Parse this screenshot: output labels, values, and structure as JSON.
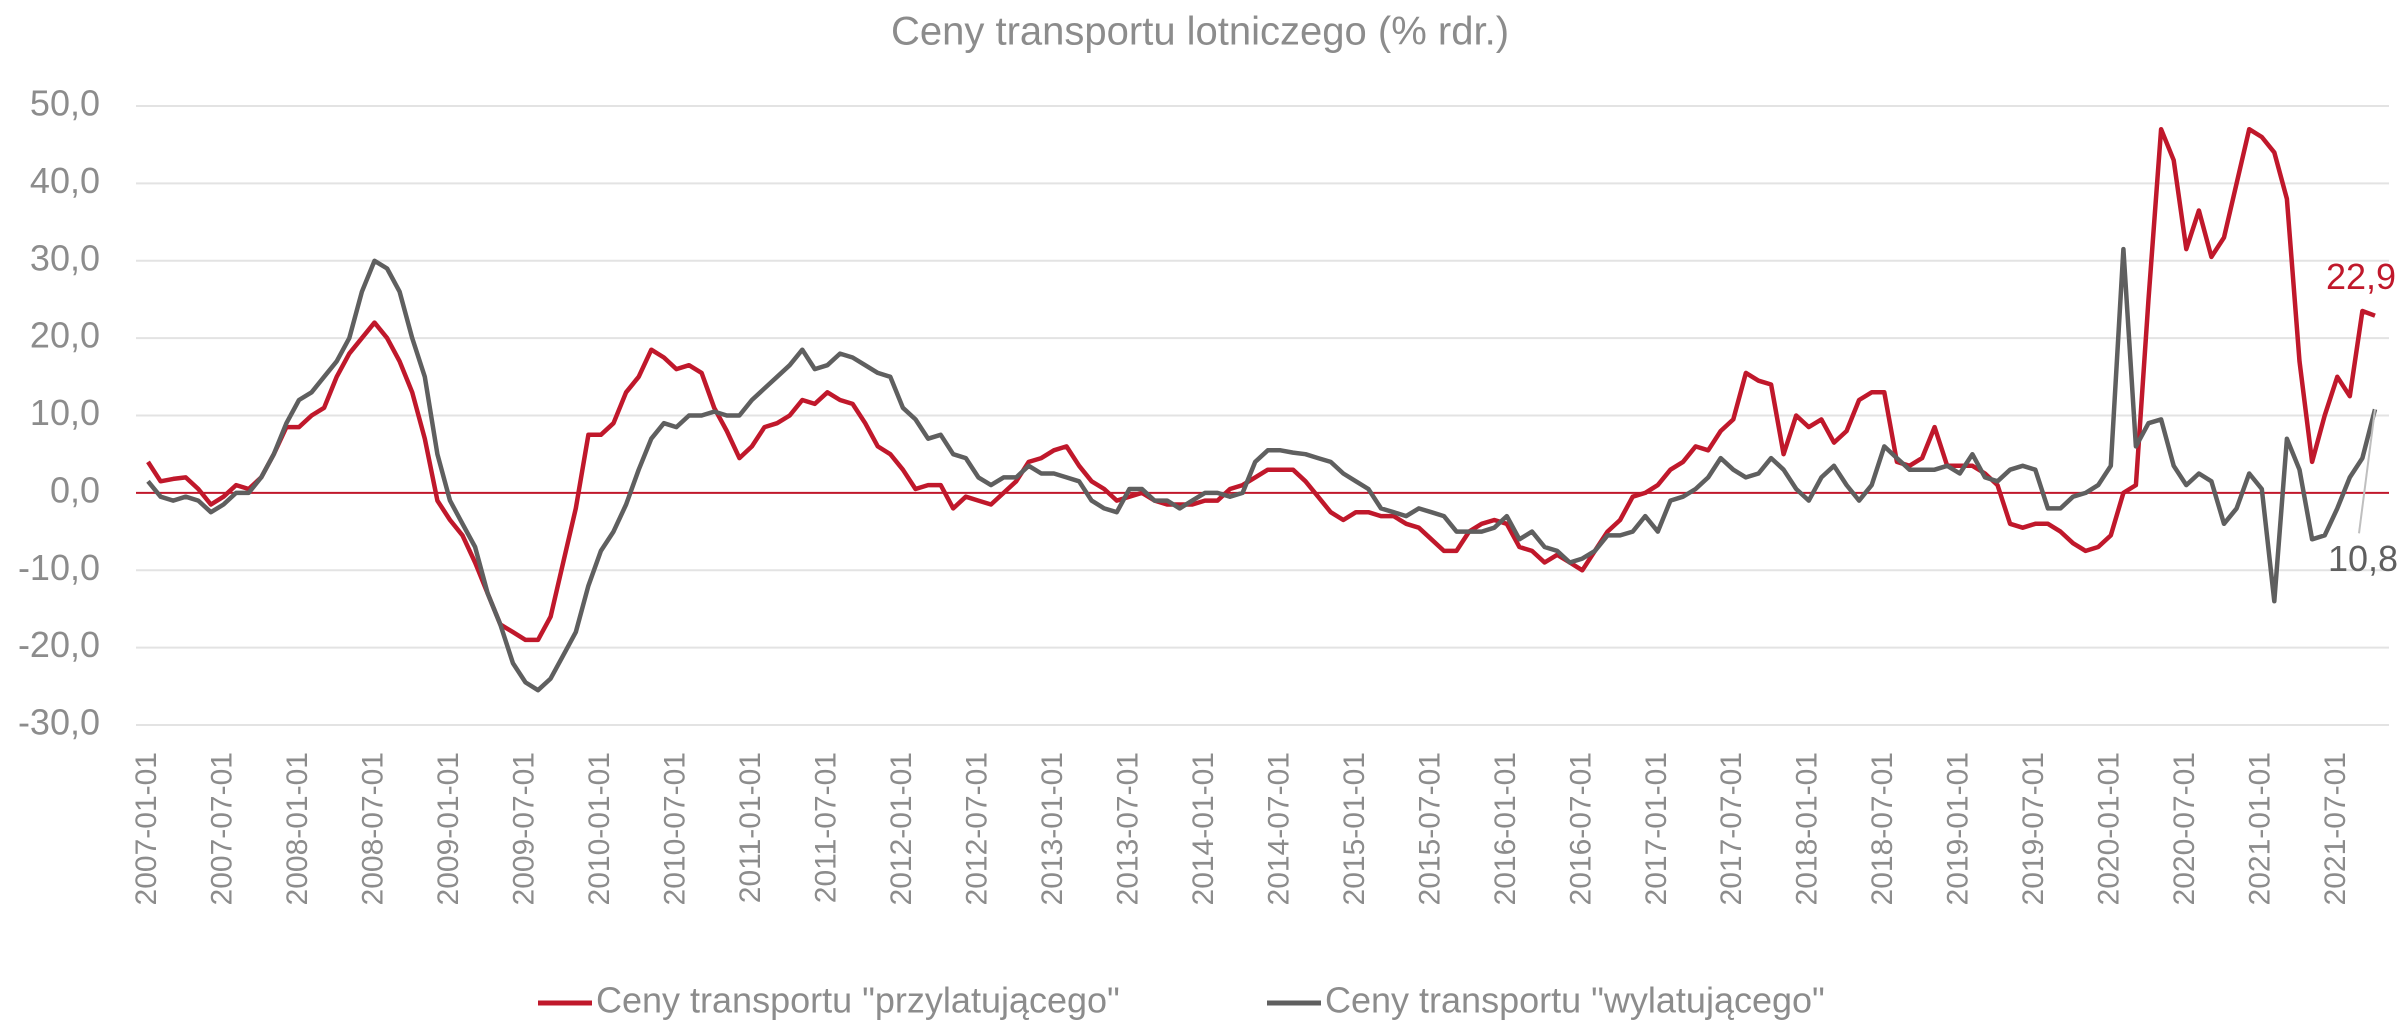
{
  "chart_data": {
    "type": "line",
    "title": "Ceny transportu lotniczego (% rdr.)",
    "categories": [
      "2007-01-01",
      null,
      null,
      null,
      null,
      null,
      "2007-07-01",
      null,
      null,
      null,
      null,
      null,
      "2008-01-01",
      null,
      null,
      null,
      null,
      null,
      "2008-07-01",
      null,
      null,
      null,
      null,
      null,
      "2009-01-01",
      null,
      null,
      null,
      null,
      null,
      "2009-07-01",
      null,
      null,
      null,
      null,
      null,
      "2010-01-01",
      null,
      null,
      null,
      null,
      null,
      "2010-07-01",
      null,
      null,
      null,
      null,
      null,
      "2011-01-01",
      null,
      null,
      null,
      null,
      null,
      "2011-07-01",
      null,
      null,
      null,
      null,
      null,
      "2012-01-01",
      null,
      null,
      null,
      null,
      null,
      "2012-07-01",
      null,
      null,
      null,
      null,
      null,
      "2013-01-01",
      null,
      null,
      null,
      null,
      null,
      "2013-07-01",
      null,
      null,
      null,
      null,
      null,
      "2014-01-01",
      null,
      null,
      null,
      null,
      null,
      "2014-07-01",
      null,
      null,
      null,
      null,
      null,
      "2015-01-01",
      null,
      null,
      null,
      null,
      null,
      "2015-07-01",
      null,
      null,
      null,
      null,
      null,
      "2016-01-01",
      null,
      null,
      null,
      null,
      null,
      "2016-07-01",
      null,
      null,
      null,
      null,
      null,
      "2017-01-01",
      null,
      null,
      null,
      null,
      null,
      "2017-07-01",
      null,
      null,
      null,
      null,
      null,
      "2018-01-01",
      null,
      null,
      null,
      null,
      null,
      "2018-07-01",
      null,
      null,
      null,
      null,
      null,
      "2019-01-01",
      null,
      null,
      null,
      null,
      null,
      "2019-07-01",
      null,
      null,
      null,
      null,
      null,
      "2020-01-01",
      null,
      null,
      null,
      null,
      null,
      "2020-07-01",
      null,
      null,
      null,
      null,
      null,
      "2021-01-01",
      null,
      null,
      null,
      null,
      null,
      "2021-07-01",
      null,
      null,
      null
    ],
    "series": [
      {
        "name": "Ceny transportu \"przylatującego\"",
        "color": "#c0182b",
        "values": [
          4,
          1.5,
          1.8,
          2,
          0.5,
          -1.5,
          -0.5,
          1,
          0.5,
          2,
          5,
          8.5,
          8.5,
          10,
          11,
          15,
          18,
          20,
          22,
          20,
          17,
          13,
          7,
          -1,
          -3.5,
          -5.5,
          -9,
          -13,
          -17,
          -18,
          -19,
          -19,
          -16,
          -9,
          -2,
          7.5,
          7.5,
          9,
          13,
          15,
          18.5,
          17.5,
          16,
          16.5,
          15.5,
          11,
          8,
          4.5,
          6,
          8.5,
          9,
          10,
          12,
          11.5,
          13,
          12,
          11.5,
          9,
          6,
          5,
          3,
          0.5,
          1,
          1,
          -2,
          -0.5,
          -1,
          -1.5,
          0,
          1.5,
          4,
          4.5,
          5.5,
          6,
          3.5,
          1.5,
          0.5,
          -1,
          -0.5,
          0,
          -1,
          -1.5,
          -1.5,
          -1.5,
          -1,
          -1,
          0.5,
          1,
          2,
          3,
          3,
          3,
          1.5,
          -0.5,
          -2.5,
          -3.5,
          -2.5,
          -2.5,
          -3,
          -3,
          -4,
          -4.5,
          -6,
          -7.5,
          -7.5,
          -5,
          -4,
          -3.5,
          -4,
          -7,
          -7.5,
          -9,
          -8,
          -9,
          -10,
          -7.5,
          -5,
          -3.5,
          -0.5,
          0,
          1,
          3,
          4,
          6,
          5.5,
          8,
          9.5,
          15.5,
          14.5,
          14,
          5,
          10,
          8.5,
          9.5,
          6.5,
          8,
          12,
          13,
          13,
          4,
          3.5,
          4.5,
          8.5,
          3.5,
          3.5,
          3.5,
          2.5,
          1,
          -4,
          -4.5,
          -4,
          -4,
          -5,
          -6.5,
          -7.5,
          -7,
          -5.5,
          0,
          1,
          25,
          47,
          43,
          31.5,
          36.5,
          30.5,
          33,
          40,
          47,
          46,
          44,
          38,
          17,
          4,
          10,
          15,
          12.5,
          23.5,
          22.9
        ],
        "value_labels": {
          "177": "22,9"
        }
      },
      {
        "name": "Ceny transportu \"wylatującego\"",
        "color": "#5f5f5f",
        "values": [
          1.5,
          -0.5,
          -1,
          -0.5,
          -1,
          -2.5,
          -1.5,
          0,
          0,
          2,
          5,
          9,
          12,
          13,
          15,
          17,
          20,
          26,
          30,
          29,
          26,
          20,
          15,
          5,
          -1,
          -4,
          -7,
          -13,
          -17,
          -22,
          -24.5,
          -25.5,
          -24,
          -21,
          -18,
          -12,
          -7.5,
          -5,
          -1.5,
          3,
          7,
          9,
          8.5,
          10,
          10,
          10.5,
          10,
          10,
          12,
          13.5,
          15,
          16.5,
          18.5,
          16,
          16.5,
          18,
          17.5,
          16.5,
          15.5,
          15,
          11,
          9.5,
          7,
          7.5,
          5,
          4.5,
          2,
          1,
          2,
          2,
          3.5,
          2.5,
          2.5,
          2,
          1.5,
          -1,
          -2,
          -2.5,
          0.5,
          0.5,
          -1,
          -1,
          -2,
          -1,
          0,
          0,
          -0.5,
          0,
          4,
          5.5,
          5.5,
          5.2,
          5,
          4.5,
          4,
          2.5,
          1.5,
          0.5,
          -2,
          -2.5,
          -3,
          -2,
          -2.5,
          -3,
          -5,
          -5,
          -5,
          -4.5,
          -3,
          -6,
          -5,
          -7,
          -7.5,
          -9,
          -8.5,
          -7.5,
          -5.5,
          -5.5,
          -5,
          -3,
          -5,
          -1,
          -0.5,
          0.5,
          2,
          4.5,
          3,
          2,
          2.5,
          4.5,
          3,
          0.5,
          -1,
          2,
          3.5,
          1,
          -1,
          1,
          6,
          4.5,
          3,
          3,
          3,
          3.5,
          2.5,
          5,
          2,
          1.5,
          3,
          3.5,
          3,
          -2,
          -2,
          -0.5,
          0,
          1,
          3.5,
          31.5,
          6,
          9,
          9.5,
          3.5,
          1,
          2.5,
          1.5,
          -4,
          -2,
          2.5,
          0.5,
          -14,
          7,
          3,
          -6,
          -5.5,
          -2,
          2,
          4.5,
          10.8
        ],
        "value_labels": {
          "177": "10,8"
        }
      }
    ],
    "ylim": [
      -30,
      50
    ],
    "yticks": [
      {
        "value": -30,
        "label": "-30,0"
      },
      {
        "value": -20,
        "label": "-20,0"
      },
      {
        "value": -10,
        "label": "-10,0"
      },
      {
        "value": 0,
        "label": "0,0"
      },
      {
        "value": 10,
        "label": "10,0"
      },
      {
        "value": 20,
        "label": "20,0"
      },
      {
        "value": 30,
        "label": "30,0"
      },
      {
        "value": 40,
        "label": "40,0"
      },
      {
        "value": 50,
        "label": "50,0"
      }
    ],
    "grid": true,
    "legend": "bottom"
  }
}
